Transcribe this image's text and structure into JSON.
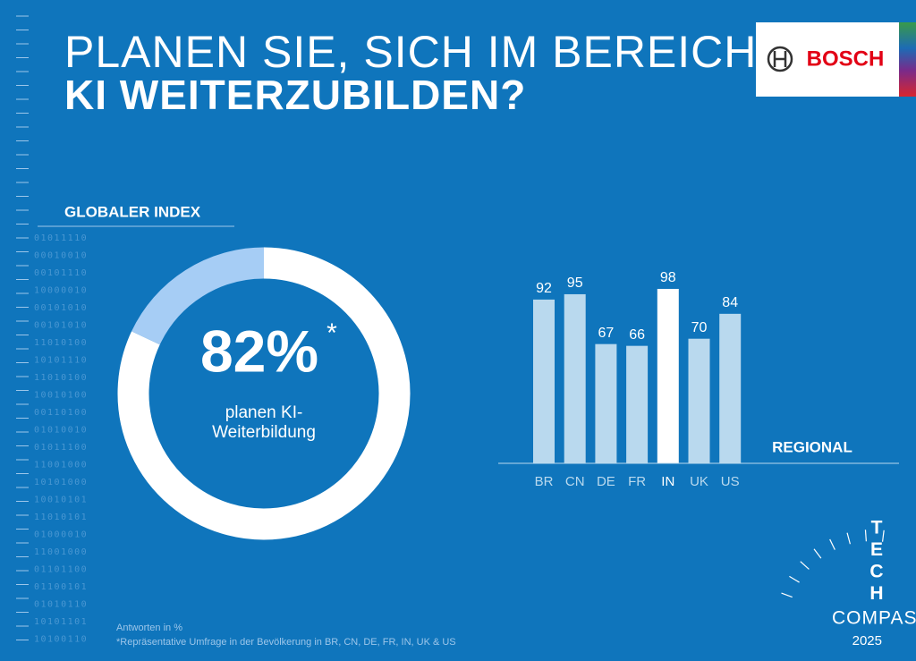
{
  "header": {
    "title_line1": "PLANEN SIE, SICH IM BEREICH",
    "title_line2": "KI WEITERZUBILDEN?"
  },
  "section_label": "GLOBALER INDEX",
  "logo": "BOSCH",
  "badge": {
    "letters": [
      "T",
      "E",
      "C",
      "H"
    ],
    "word": "COMPASS",
    "year": "2025"
  },
  "notes": [
    "Antworten in %",
    "*Repräsentative Umfrage in der Bevölkerung in BR, CN, DE, FR, IN, UK & US"
  ],
  "binary_rows": [
    "01011110",
    "00010010",
    "00101110",
    "10000010",
    "00101010",
    "00101010",
    "11010100",
    "10101110",
    "11010100",
    "10010100",
    "00110100",
    "01010010",
    "01011100",
    "11001000",
    "10101000",
    "10010101",
    "11010101",
    "01000010",
    "11001000",
    "01101100",
    "01100101",
    "01010110",
    "10101101",
    "10100110"
  ],
  "chart_data": [
    {
      "type": "pie",
      "donut": true,
      "values": [
        82,
        18
      ],
      "value_labels": [
        "82%",
        null
      ],
      "note_marker": "*",
      "label": [
        "planen KI-",
        "Weiterbildung"
      ],
      "colors": [
        "#ffffff",
        "#a6cdf5"
      ]
    },
    {
      "type": "bar",
      "title": "REGIONAL",
      "categories": [
        "BR",
        "CN",
        "DE",
        "FR",
        "IN",
        "UK",
        "US"
      ],
      "values": [
        92,
        95,
        67,
        66,
        98,
        70,
        84
      ],
      "ylim": [
        0,
        100
      ],
      "colors": [
        "#b9d9ee",
        "#b9d9ee",
        "#b9d9ee",
        "#b9d9ee",
        "#ffffff",
        "#b9d9ee",
        "#b9d9ee"
      ]
    }
  ]
}
